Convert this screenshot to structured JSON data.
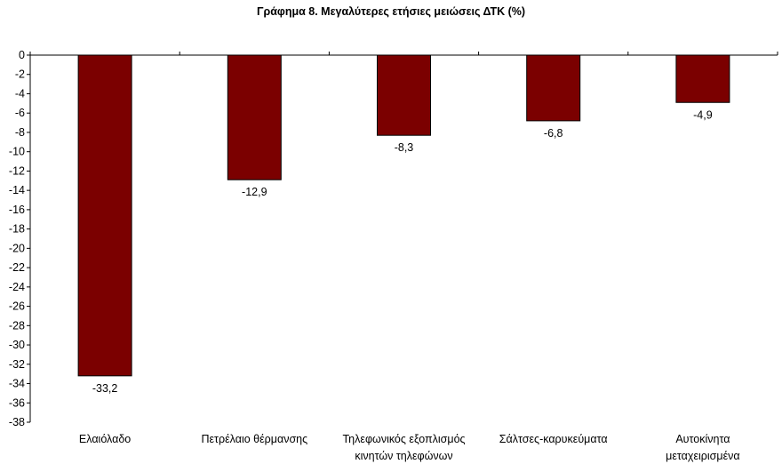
{
  "chart_data": {
    "type": "bar",
    "title": "Γράφημα 8. Μεγαλύτερες ετήσιες μειώσεις ΔΤΚ (%)",
    "categories": [
      [
        "Ελαιόλαδο"
      ],
      [
        "Πετρέλαιο θέρμανσης"
      ],
      [
        "Τηλεφωνικός εξοπλισμός",
        "κινητών τηλεφώνων"
      ],
      [
        "Σάλτσες-καρυκεύματα"
      ],
      [
        "Αυτοκίνητα",
        "μεταχειρισμένα"
      ]
    ],
    "values": [
      -33.2,
      -12.9,
      -8.3,
      -6.8,
      -4.9
    ],
    "value_labels": [
      "-33,2",
      "-12,9",
      "-8,3",
      "-6,8",
      "-4,9"
    ],
    "ylim": [
      -38,
      0
    ],
    "yticks": [
      0,
      -2,
      -4,
      -6,
      -8,
      -10,
      -12,
      -14,
      -16,
      -18,
      -20,
      -22,
      -24,
      -26,
      -28,
      -30,
      -32,
      -34,
      -36,
      -38
    ],
    "xlabel": "",
    "ylabel": "",
    "grid": false,
    "legend": "none",
    "bar_color": "#7B0000",
    "bar_edge_color": "#000000"
  }
}
